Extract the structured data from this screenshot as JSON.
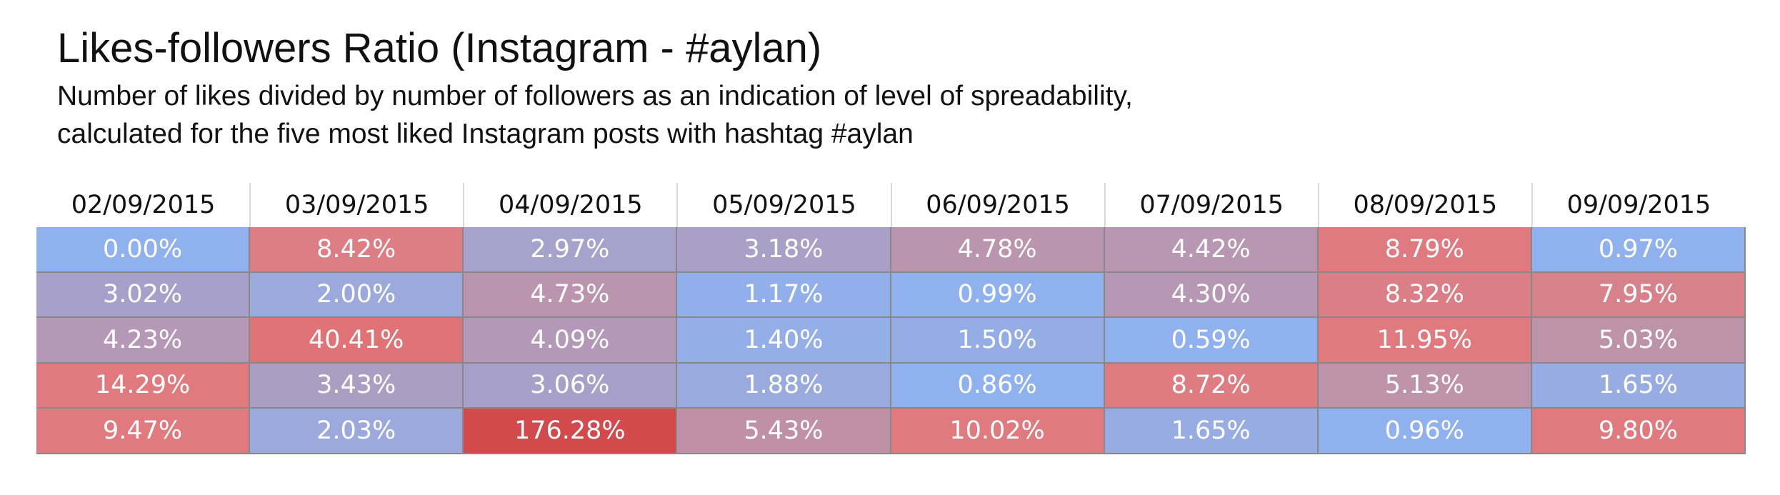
{
  "title": "Likes-followers Ratio (Instagram - #aylan)",
  "subtitle_lines": [
    "Number of likes divided by number of followers as an indication of level of spreadability,",
    "calculated for the five most liked Instagram posts with hashtag #aylan"
  ],
  "chart_data": {
    "type": "heatmap",
    "title": "Likes-followers Ratio (Instagram - #aylan)",
    "columns": [
      "02/09/2015",
      "03/09/2015",
      "04/09/2015",
      "05/09/2015",
      "06/09/2015",
      "07/09/2015",
      "08/09/2015",
      "09/09/2015"
    ],
    "rows": [
      [
        "0.00%",
        "8.42%",
        "2.97%",
        "3.18%",
        "4.78%",
        "4.42%",
        "8.79%",
        "0.97%"
      ],
      [
        "3.02%",
        "2.00%",
        "4.73%",
        "1.17%",
        "0.99%",
        "4.30%",
        "8.32%",
        "7.95%"
      ],
      [
        "4.23%",
        "40.41%",
        "4.09%",
        "1.40%",
        "1.50%",
        "0.59%",
        "11.95%",
        "5.03%"
      ],
      [
        "14.29%",
        "3.43%",
        "3.06%",
        "1.88%",
        "0.86%",
        "8.72%",
        "5.13%",
        "1.65%"
      ],
      [
        "9.47%",
        "2.03%",
        "176.28%",
        "5.43%",
        "10.02%",
        "1.65%",
        "0.96%",
        "9.80%"
      ]
    ],
    "values": [
      [
        0.0,
        8.42,
        2.97,
        3.18,
        4.78,
        4.42,
        8.79,
        0.97
      ],
      [
        3.02,
        2.0,
        4.73,
        1.17,
        0.99,
        4.3,
        8.32,
        7.95
      ],
      [
        4.23,
        40.41,
        4.09,
        1.4,
        1.5,
        0.59,
        11.95,
        5.03
      ],
      [
        14.29,
        3.43,
        3.06,
        1.88,
        0.86,
        8.72,
        5.13,
        1.65
      ],
      [
        9.47,
        2.03,
        176.28,
        5.43,
        10.02,
        1.65,
        0.96,
        9.8
      ]
    ],
    "colors": {
      "low": "#8fb1ee",
      "mid": "#b896b0",
      "high": "#e17a7e",
      "max": "#d24a4b",
      "text": "#ffffff",
      "border": "#888888"
    }
  }
}
